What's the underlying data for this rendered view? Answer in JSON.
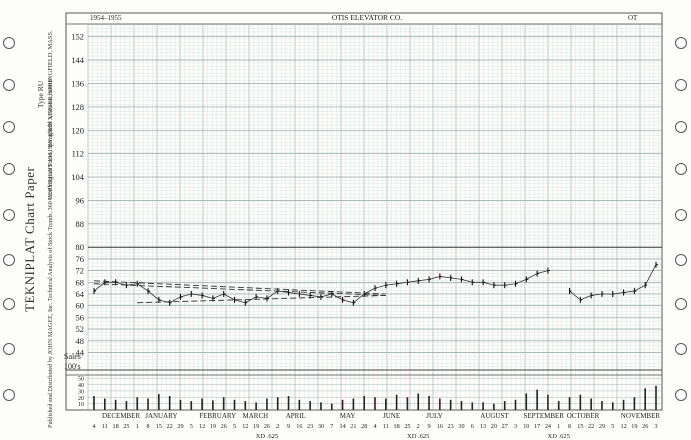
{
  "sheet": {
    "paper_title": "TEKNIPLAT Chart Paper",
    "copyright": "COPYRIGHT 1961 BY JOHN MAGEE, SPRINGFIELD, MASS.",
    "type_label": "Type RU",
    "publisher": "Published and Distributed by JOHN MAGEE, Inc. Technical Analysis of Stock Trends, 360 Worthington Street, Springfield 3, Massachusetts"
  },
  "chart_data": {
    "type": "line",
    "title": "OTIS ELEVATOR CO.",
    "period": "1954–1955",
    "symbol": "OT",
    "ylabel": "",
    "ylim": [
      38,
      156
    ],
    "yticks": [
      44,
      48,
      52,
      56,
      60,
      64,
      68,
      72,
      76,
      80,
      88,
      96,
      104,
      112,
      120,
      128,
      136,
      144,
      152
    ],
    "volume_label_1": "Sales",
    "volume_label_2": "100's",
    "volume_ticks": [
      10,
      20,
      30,
      40,
      50
    ],
    "volume_ylim": [
      0,
      55
    ],
    "months": [
      "DECEMBER",
      "JANUARY",
      "FEBRUARY",
      "MARCH",
      "APRIL",
      "MAY",
      "JUNE",
      "JULY",
      "AUGUST",
      "SEPTEMBER",
      "OCTOBER",
      "NOVEMBER"
    ],
    "dates": [
      "4",
      "11",
      "18",
      "25",
      "1",
      "8",
      "15",
      "22",
      "29",
      "5",
      "12",
      "19",
      "26",
      "5",
      "12",
      "19",
      "26",
      "2",
      "9",
      "16",
      "23",
      "30",
      "7",
      "14",
      "21",
      "28",
      "4",
      "11",
      "18",
      "25",
      "2",
      "9",
      "16",
      "23",
      "30",
      "6",
      "13",
      "20",
      "27",
      "3",
      "10",
      "17",
      "24",
      "1",
      "8",
      "15",
      "22",
      "29",
      "5",
      "12",
      "19",
      "26",
      "3"
    ],
    "dividends": [
      "XD .625",
      "XD .625",
      "XD .625"
    ],
    "grid": true,
    "series": [
      {
        "weeks": [
          0,
          1,
          2,
          3,
          4,
          5,
          6,
          7,
          8,
          9,
          10,
          11,
          12,
          13,
          14,
          15,
          16,
          17,
          18,
          19,
          20,
          21,
          22,
          23,
          24,
          25,
          26,
          27,
          28,
          29,
          30,
          31,
          32,
          33,
          34,
          35,
          36,
          37,
          38,
          39,
          40,
          41,
          42,
          43,
          44,
          45,
          46,
          47,
          48,
          49,
          50,
          51,
          52
        ],
        "values": [
          65,
          68,
          68,
          67,
          67.5,
          65,
          62,
          61,
          63,
          64,
          63.5,
          62.5,
          64,
          62,
          61,
          63,
          62.5,
          65,
          64.5,
          64,
          63.5,
          63,
          64,
          62,
          61,
          64,
          66,
          67,
          67.5,
          68,
          68.5,
          69,
          70,
          69.5,
          69,
          68,
          68,
          67,
          67,
          67.5,
          69,
          71,
          72,
          null,
          65,
          62,
          63.5,
          64,
          64,
          64.5,
          65,
          67,
          74
        ]
      }
    ],
    "trendlines": [
      {
        "from": [
          0,
          68.5
        ],
        "to": [
          27,
          64
        ]
      },
      {
        "from": [
          0,
          67.5
        ],
        "to": [
          27,
          63.5
        ]
      },
      {
        "from": [
          4,
          61
        ],
        "to": [
          27,
          63.5
        ]
      }
    ],
    "volume": [
      22,
      18,
      16,
      14,
      20,
      18,
      25,
      22,
      16,
      14,
      18,
      15,
      20,
      16,
      14,
      12,
      18,
      20,
      22,
      16,
      14,
      12,
      10,
      16,
      18,
      22,
      20,
      18,
      24,
      20,
      26,
      22,
      18,
      16,
      14,
      12,
      12,
      10,
      14,
      16,
      26,
      32,
      24,
      14,
      20,
      24,
      18,
      14,
      12,
      16,
      20,
      34,
      38
    ]
  }
}
